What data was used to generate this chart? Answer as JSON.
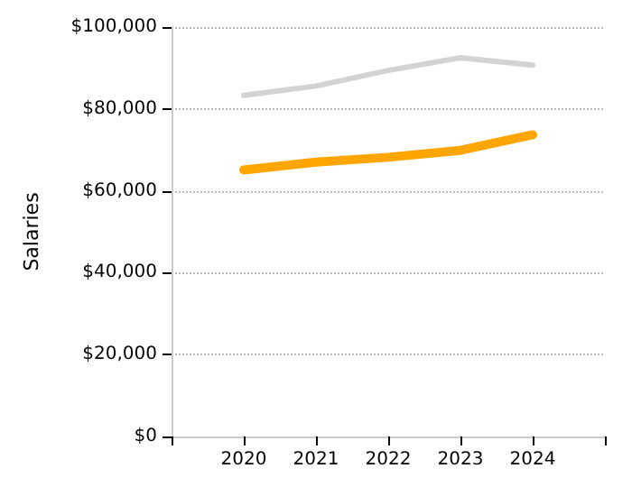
{
  "chart_data": {
    "type": "line",
    "ylabel": "Salaries",
    "x": [
      2020,
      2021,
      2022,
      2023,
      2024
    ],
    "xlim": [
      2019,
      2025
    ],
    "xticks": [
      {
        "value": 2019,
        "label": null
      },
      2020,
      2021,
      2022,
      2023,
      2024,
      {
        "value": 2025,
        "label": null
      }
    ],
    "ylim": [
      0,
      100000
    ],
    "yticks": [
      {
        "value": 0,
        "label": "$0"
      },
      {
        "value": 20000,
        "label": "$20,000"
      },
      {
        "value": 40000,
        "label": "$40,000"
      },
      {
        "value": 60000,
        "label": "$60,000"
      },
      {
        "value": 80000,
        "label": "$80,000"
      },
      {
        "value": 100000,
        "label": "$100,000"
      }
    ],
    "series": [
      {
        "color": "#d3d3d3",
        "values": [
          83300,
          85600,
          89400,
          92500,
          90700
        ]
      },
      {
        "color": "#ffa500",
        "values": [
          65100,
          67000,
          68200,
          69900,
          73700
        ]
      }
    ],
    "grid": "y",
    "marker": "none",
    "line_style": "solid"
  }
}
